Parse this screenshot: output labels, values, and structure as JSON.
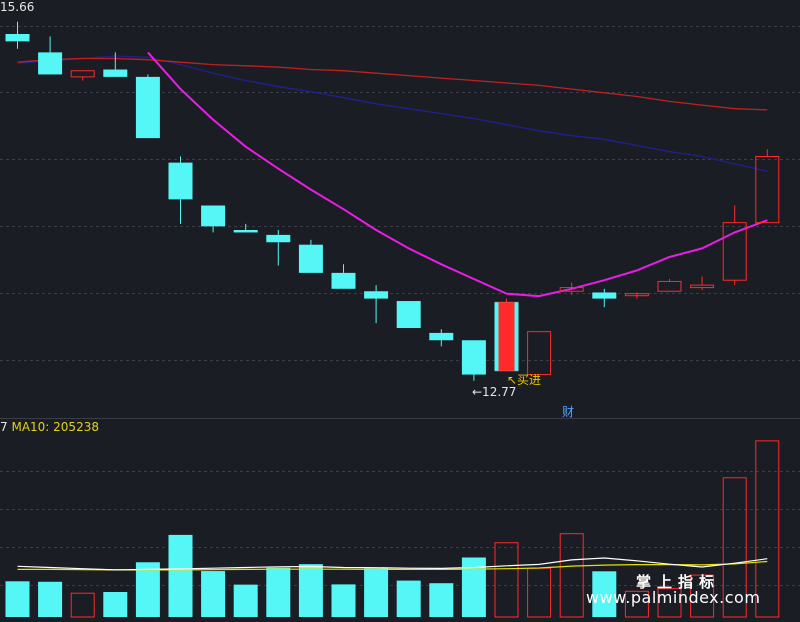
{
  "labels": {
    "price_high": "15.66",
    "volume_legend_cut": "7",
    "volume_legend": "MA10: 205238",
    "low_marker": "←12.77",
    "buy_signal": "↖买进",
    "badge": "财",
    "watermark_cn": "掌上指标",
    "watermark_url": "www.palmindex.com"
  },
  "colors": {
    "background": "#1b1d24",
    "up": "#ff2a2a",
    "down": "#55f6f6",
    "ma_short": "#e81ee8",
    "ma_mid": "#c02020",
    "ma_long": "#202090",
    "vol_ma_white": "#ffffff",
    "vol_ma_yellow": "#e6e000",
    "grid": "#3a3d47"
  },
  "chart_data": [
    {
      "type": "candlestick",
      "title": "",
      "price_scale_top": 15.66,
      "lowest_low": 12.77,
      "bars": [
        {
          "o": 15.6,
          "h": 15.7,
          "c": 15.54,
          "l": 15.48
        },
        {
          "o": 15.45,
          "h": 15.58,
          "c": 15.27,
          "l": 15.27
        },
        {
          "o": 15.25,
          "h": 15.3,
          "c": 15.3,
          "l": 15.22
        },
        {
          "o": 15.31,
          "h": 15.45,
          "c": 15.25,
          "l": 15.25
        },
        {
          "o": 15.25,
          "h": 15.27,
          "c": 14.75,
          "l": 14.75
        },
        {
          "o": 14.55,
          "h": 14.6,
          "c": 14.25,
          "l": 14.05
        },
        {
          "o": 14.2,
          "h": 14.2,
          "c": 14.03,
          "l": 13.98
        },
        {
          "o": 14.0,
          "h": 14.05,
          "c": 13.98,
          "l": 13.98
        },
        {
          "o": 13.96,
          "h": 14.0,
          "c": 13.9,
          "l": 13.71
        },
        {
          "o": 13.88,
          "h": 13.92,
          "c": 13.65,
          "l": 13.65
        },
        {
          "o": 13.65,
          "h": 13.72,
          "c": 13.52,
          "l": 13.52
        },
        {
          "o": 13.5,
          "h": 13.55,
          "c": 13.44,
          "l": 13.24
        },
        {
          "o": 13.42,
          "h": 13.42,
          "c": 13.2,
          "l": 13.2
        },
        {
          "o": 13.16,
          "h": 13.19,
          "c": 13.1,
          "l": 13.05
        },
        {
          "o": 13.1,
          "h": 13.1,
          "c": 12.82,
          "l": 12.77
        },
        {
          "o": 12.85,
          "h": 13.44,
          "c": 13.41,
          "l": 12.85
        },
        {
          "o": 12.82,
          "h": 13.17,
          "c": 13.17,
          "l": 12.82
        },
        {
          "o": 13.5,
          "h": 13.57,
          "c": 13.53,
          "l": 13.47
        },
        {
          "o": 13.49,
          "h": 13.52,
          "c": 13.44,
          "l": 13.37
        },
        {
          "o": 13.48,
          "h": 13.49,
          "c": 13.48,
          "l": 13.44
        },
        {
          "o": 13.5,
          "h": 13.6,
          "c": 13.58,
          "l": 13.5
        },
        {
          "o": 13.53,
          "h": 13.62,
          "c": 13.55,
          "l": 13.51
        },
        {
          "o": 13.59,
          "h": 14.2,
          "c": 14.06,
          "l": 13.55
        },
        {
          "o": 14.06,
          "h": 14.66,
          "c": 14.6,
          "l": 14.06
        }
      ],
      "ma_short": [
        null,
        null,
        null,
        null,
        15.45,
        15.15,
        14.9,
        14.68,
        14.5,
        14.33,
        14.17,
        14.0,
        13.85,
        13.72,
        13.6,
        13.48,
        13.46,
        13.52,
        13.59,
        13.67,
        13.78,
        13.85,
        13.98,
        14.08
      ],
      "ma_mid": [
        15.37,
        15.39,
        15.4,
        15.4,
        15.39,
        15.37,
        15.35,
        15.34,
        15.33,
        15.31,
        15.3,
        15.28,
        15.26,
        15.24,
        15.22,
        15.2,
        15.18,
        15.15,
        15.12,
        15.09,
        15.05,
        15.02,
        14.99,
        14.98
      ],
      "ma_long": [
        15.36,
        15.38,
        15.4,
        15.42,
        15.41,
        15.35,
        15.28,
        15.22,
        15.17,
        15.13,
        15.08,
        15.03,
        14.99,
        14.95,
        14.91,
        14.86,
        14.81,
        14.77,
        14.74,
        14.69,
        14.64,
        14.6,
        14.54,
        14.48
      ]
    },
    {
      "type": "bar",
      "title": "",
      "legend": "MA10: 205238",
      "values": [
        150,
        148,
        100,
        105,
        230,
        345,
        193,
        136,
        207,
        222,
        137,
        205,
        153,
        142,
        250,
        312,
        205,
        350,
        192,
        108,
        119,
        176,
        585,
        740
      ],
      "ma_white": [
        213,
        208,
        203,
        198,
        200,
        202,
        205,
        208,
        211,
        212,
        208,
        207,
        205,
        204,
        208,
        215,
        221,
        240,
        248,
        236,
        222,
        210,
        226,
        245
      ],
      "ma_yellow": [
        200,
        200,
        199,
        198,
        198,
        198,
        199,
        200,
        201,
        201,
        201,
        200,
        200,
        200,
        201,
        203,
        206,
        214,
        218,
        220,
        220,
        219,
        223,
        233
      ]
    }
  ]
}
